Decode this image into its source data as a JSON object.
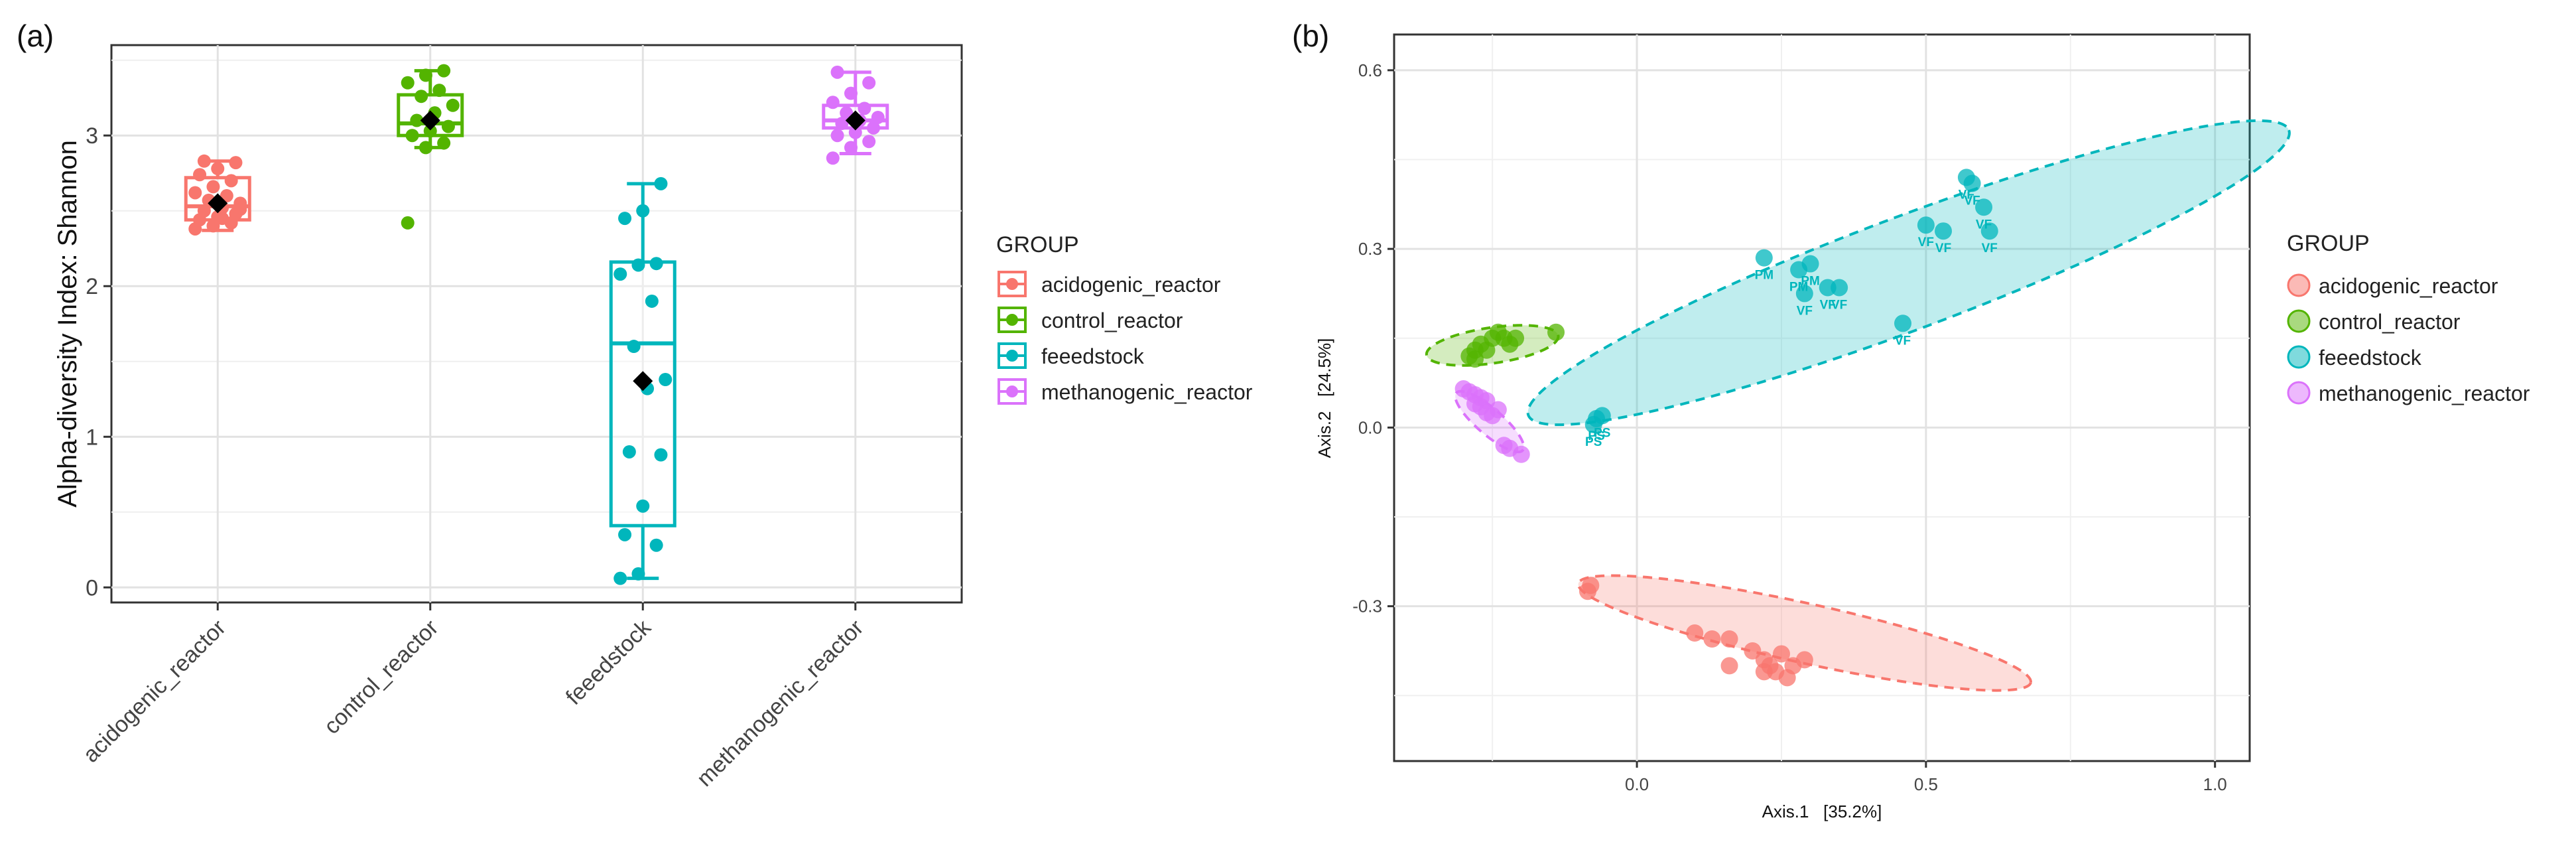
{
  "panel_a": {
    "label": "(a)",
    "legend_title": "GROUP",
    "chart_data": {
      "type": "boxplot",
      "ylabel": "Alpha-diversity Index: Shannon",
      "ylim": [
        -0.1,
        3.6
      ],
      "yticks": [
        0,
        1,
        2,
        3
      ],
      "categories": [
        "acidogenic_reactor",
        "control_reactor",
        "feeedstock",
        "methanogenic_reactor"
      ],
      "groups": [
        {
          "name": "acidogenic_reactor",
          "color": "#F8766D",
          "q1": 2.44,
          "median": 2.53,
          "q3": 2.72,
          "whisker_low": 2.37,
          "whisker_high": 2.83,
          "mean": 2.55,
          "points": [
            2.38,
            2.4,
            2.42,
            2.44,
            2.46,
            2.48,
            2.5,
            2.52,
            2.55,
            2.57,
            2.6,
            2.62,
            2.66,
            2.7,
            2.74,
            2.78,
            2.82,
            2.83,
            2.45,
            2.51
          ]
        },
        {
          "name": "control_reactor",
          "color": "#53B400",
          "q1": 3.0,
          "median": 3.08,
          "q3": 3.27,
          "whisker_low": 2.92,
          "whisker_high": 3.43,
          "mean": 3.1,
          "points": [
            2.42,
            2.92,
            2.95,
            3.0,
            3.03,
            3.06,
            3.1,
            3.15,
            3.2,
            3.26,
            3.3,
            3.35,
            3.4,
            3.43
          ]
        },
        {
          "name": "feeedstock",
          "color": "#00B6BC",
          "q1": 0.41,
          "median": 1.62,
          "q3": 2.16,
          "whisker_low": 0.06,
          "whisker_high": 2.68,
          "mean": 1.37,
          "points": [
            0.06,
            0.09,
            0.28,
            0.35,
            0.54,
            0.88,
            0.9,
            1.32,
            1.38,
            1.6,
            1.9,
            2.08,
            2.14,
            2.15,
            2.45,
            2.5,
            2.68
          ]
        },
        {
          "name": "methanogenic_reactor",
          "color": "#DB72FB",
          "q1": 3.05,
          "median": 3.1,
          "q3": 3.2,
          "whisker_low": 2.88,
          "whisker_high": 3.42,
          "mean": 3.1,
          "points": [
            2.85,
            2.92,
            2.96,
            3.0,
            3.02,
            3.05,
            3.08,
            3.1,
            3.12,
            3.15,
            3.18,
            3.22,
            3.28,
            3.35,
            3.42
          ]
        }
      ]
    }
  },
  "panel_b": {
    "label": "(b)",
    "legend_title": "GROUP",
    "chart_data": {
      "type": "scatter",
      "xlabel": "Axis.1   [35.2%]",
      "ylabel": "Axis.2   [24.5%]",
      "xlim": [
        -0.42,
        1.06
      ],
      "ylim": [
        -0.56,
        0.66
      ],
      "xticks": [
        0.0,
        0.5,
        1.0
      ],
      "yticks": [
        -0.3,
        0.0,
        0.3,
        0.6
      ],
      "xticklabels": [
        "0.0",
        "0.5",
        "1.0"
      ],
      "yticklabels": [
        "-0.3",
        "0.0",
        "0.3",
        "0.6"
      ],
      "series": [
        {
          "name": "acidogenic_reactor",
          "color": "#F8766D",
          "points": [
            [
              -0.08,
              -0.265
            ],
            [
              -0.085,
              -0.275
            ],
            [
              0.1,
              -0.345
            ],
            [
              0.13,
              -0.355
            ],
            [
              0.16,
              -0.355
            ],
            [
              0.2,
              -0.375
            ],
            [
              0.22,
              -0.39
            ],
            [
              0.23,
              -0.4
            ],
            [
              0.25,
              -0.38
            ],
            [
              0.27,
              -0.4
            ],
            [
              0.29,
              -0.39
            ],
            [
              0.24,
              -0.41
            ],
            [
              0.26,
              -0.42
            ],
            [
              0.22,
              -0.41
            ],
            [
              0.16,
              -0.4
            ]
          ],
          "ellipse": {
            "cx": 0.29,
            "cy": -0.345,
            "rx": 0.4,
            "ry": 0.05,
            "angle_deg": -12
          }
        },
        {
          "name": "control_reactor",
          "color": "#53B400",
          "points": [
            [
              -0.28,
              0.13
            ],
            [
              -0.27,
              0.14
            ],
            [
              -0.26,
              0.13
            ],
            [
              -0.25,
              0.15
            ],
            [
              -0.24,
              0.16
            ],
            [
              -0.23,
              0.15
            ],
            [
              -0.22,
              0.14
            ],
            [
              -0.29,
              0.12
            ],
            [
              -0.28,
              0.115
            ],
            [
              -0.21,
              0.15
            ],
            [
              -0.14,
              0.16
            ]
          ],
          "ellipse": {
            "cx": -0.25,
            "cy": 0.138,
            "rx": 0.115,
            "ry": 0.03,
            "angle_deg": 8
          }
        },
        {
          "name": "feeedstock",
          "color": "#00B6BC",
          "labels": [
            "PM",
            "PM",
            "PM",
            "VF",
            "VF",
            "VF",
            "VF",
            "VF",
            "VF",
            "VF",
            "VF",
            "VF",
            "VF",
            "PS",
            "PS",
            "PS"
          ],
          "points": [
            [
              0.22,
              0.285
            ],
            [
              0.28,
              0.265
            ],
            [
              0.3,
              0.275
            ],
            [
              0.29,
              0.225
            ],
            [
              0.33,
              0.235
            ],
            [
              0.35,
              0.235
            ],
            [
              0.46,
              0.175
            ],
            [
              0.5,
              0.34
            ],
            [
              0.53,
              0.33
            ],
            [
              0.57,
              0.42
            ],
            [
              0.58,
              0.41
            ],
            [
              0.6,
              0.37
            ],
            [
              0.61,
              0.33
            ],
            [
              -0.07,
              0.015
            ],
            [
              -0.06,
              0.02
            ],
            [
              -0.075,
              0.005
            ]
          ],
          "ellipse": {
            "cx": 0.47,
            "cy": 0.26,
            "rx": 0.7,
            "ry": 0.095,
            "angle_deg": 20
          }
        },
        {
          "name": "methanogenic_reactor",
          "color": "#DB72FB",
          "points": [
            [
              -0.3,
              0.065
            ],
            [
              -0.29,
              0.06
            ],
            [
              -0.28,
              0.055
            ],
            [
              -0.27,
              0.05
            ],
            [
              -0.26,
              0.045
            ],
            [
              -0.27,
              0.035
            ],
            [
              -0.26,
              0.025
            ],
            [
              -0.25,
              0.02
            ],
            [
              -0.24,
              0.03
            ],
            [
              -0.23,
              -0.03
            ],
            [
              -0.22,
              -0.035
            ],
            [
              -0.2,
              -0.045
            ],
            [
              -0.28,
              0.04
            ]
          ],
          "ellipse": {
            "cx": -0.255,
            "cy": 0.01,
            "rx": 0.075,
            "ry": 0.022,
            "angle_deg": -40
          }
        }
      ]
    }
  }
}
